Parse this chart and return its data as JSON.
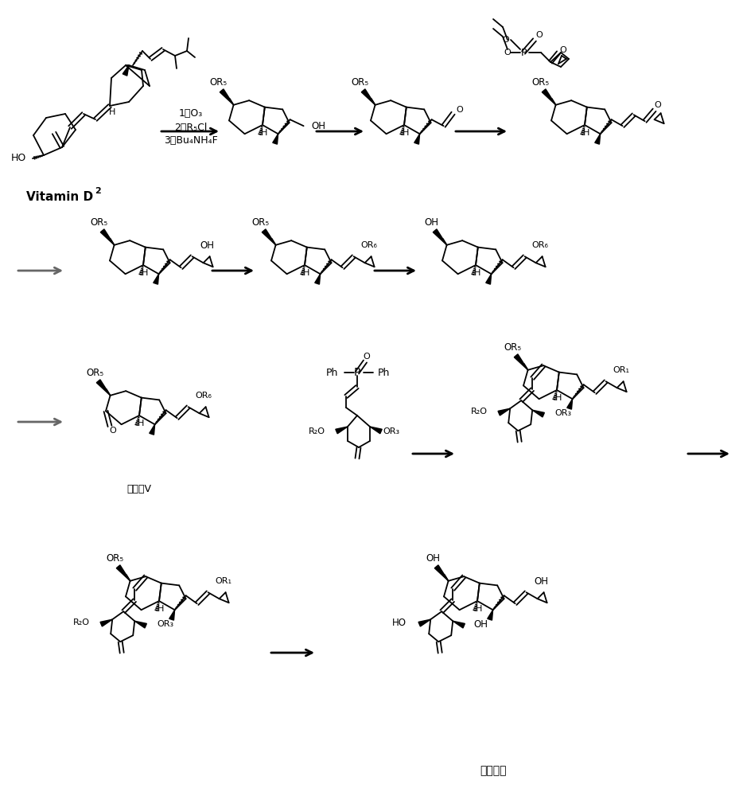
{
  "background": "#ffffff",
  "line_color": "#000000",
  "figsize": [
    9.34,
    10.0
  ],
  "dpi": 100,
  "labels": {
    "vitamin_d2_bold": "Vitamin D",
    "vitamin_d2_sub": "2",
    "intermediate_v": "中间体V",
    "capotriol": "卡泊三醉",
    "cond1": "1、O₃",
    "cond2": "2、R₅Cl",
    "cond3": "3、Bu₄NH₄F"
  }
}
